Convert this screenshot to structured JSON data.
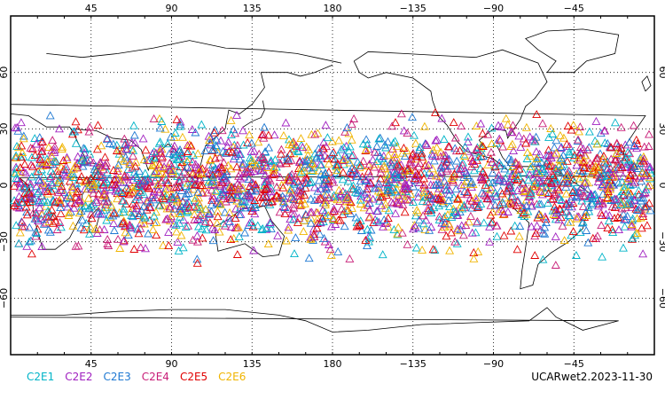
{
  "map": {
    "projection": "cylindrical",
    "lon_range": [
      0,
      360
    ],
    "lat_range": [
      -90,
      90
    ],
    "lon_ticks": [
      {
        "lon": 45,
        "label": "45"
      },
      {
        "lon": 90,
        "label": "90"
      },
      {
        "lon": 135,
        "label": "135"
      },
      {
        "lon": 180,
        "label": "180"
      },
      {
        "lon": 225,
        "label": "−135"
      },
      {
        "lon": 270,
        "label": "−90"
      },
      {
        "lon": 315,
        "label": "−45"
      }
    ],
    "lat_ticks": [
      {
        "lat": 60,
        "label": "60"
      },
      {
        "lat": 30,
        "label": "30"
      },
      {
        "lat": 0,
        "label": "0"
      },
      {
        "lat": -30,
        "label": "−30"
      },
      {
        "lat": -60,
        "label": "−60"
      }
    ],
    "grid": true,
    "marker": "triangle-icon",
    "observation_lat_band": [
      -45,
      45
    ]
  },
  "legend": {
    "items": [
      {
        "label": "C2E1",
        "color": "#00b4c8"
      },
      {
        "label": "C2E2",
        "color": "#a020c0"
      },
      {
        "label": "C2E3",
        "color": "#1e78d2"
      },
      {
        "label": "C2E4",
        "color": "#c81e78"
      },
      {
        "label": "C2E5",
        "color": "#e00000"
      },
      {
        "label": "C2E6",
        "color": "#f0b400"
      }
    ]
  },
  "dataset_label": "UCARwet2.2023-11-30"
}
